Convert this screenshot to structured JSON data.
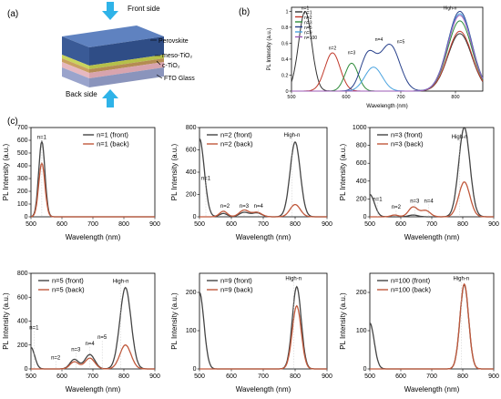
{
  "labels": {
    "a": "(a)",
    "b": "(b)",
    "c": "(c)"
  },
  "schematic": {
    "front_side": "Front side",
    "back_side": "Back side",
    "layers": [
      "Perovskite",
      "meso-TiO₂",
      "c-TiO₂",
      "FTO Glass"
    ],
    "layer_colors": [
      "#3a5a96",
      "#c9d45c",
      "#c9a060",
      "#9aa4cc"
    ],
    "arrow_color": "#2fb3e8"
  },
  "chart_data": [
    {
      "id": "b",
      "type": "line",
      "xlabel": "Wavelength (nm)",
      "ylabel": "PL Intensity (a.u.)",
      "xlim": [
        500,
        850
      ],
      "ylim": [
        0,
        1.05
      ],
      "xticks": [
        500,
        600,
        700,
        800
      ],
      "yticks": [
        0,
        0.2,
        0.4,
        0.6,
        0.8,
        1.0
      ],
      "legend": "top-left",
      "series": [
        {
          "name": "n=1",
          "color": "#333333",
          "peaks": [
            [
              525,
              1.0,
              12
            ],
            [
              808,
              0.72,
              22
            ]
          ]
        },
        {
          "name": "n=2",
          "color": "#c0392b",
          "peaks": [
            [
              575,
              0.48,
              14
            ],
            [
              808,
              0.75,
              22
            ]
          ]
        },
        {
          "name": "n=3",
          "color": "#2e8b3a",
          "peaks": [
            [
              610,
              0.35,
              12
            ],
            [
              808,
              0.88,
              22
            ]
          ]
        },
        {
          "name": "n=5",
          "color": "#27408b",
          "peaks": [
            [
              640,
              0.45,
              14
            ],
            [
              680,
              0.58,
              18
            ],
            [
              808,
              1.0,
              22
            ]
          ]
        },
        {
          "name": "n=9",
          "color": "#4aa3df",
          "peaks": [
            [
              650,
              0.3,
              16
            ],
            [
              808,
              0.97,
              22
            ]
          ]
        },
        {
          "name": "n=100",
          "color": "#9b59b6",
          "peaks": [
            [
              808,
              0.95,
              22
            ]
          ]
        }
      ],
      "annotations": [
        {
          "text": "n=1",
          "x": 525,
          "y": 1.02
        },
        {
          "text": "n=2",
          "x": 575,
          "y": 0.52
        },
        {
          "text": "n=3",
          "x": 610,
          "y": 0.46
        },
        {
          "text": "n=4",
          "x": 660,
          "y": 0.63
        },
        {
          "text": "n=5",
          "x": 700,
          "y": 0.6
        },
        {
          "text": "High-n",
          "x": 790,
          "y": 1.02
        }
      ]
    },
    {
      "id": "c1",
      "type": "line",
      "xlabel": "Wavelength (nm)",
      "ylabel": "PL Intensity (a.u.)",
      "xlim": [
        500,
        900
      ],
      "ylim": [
        0,
        700
      ],
      "xticks": [
        500,
        600,
        700,
        800,
        900
      ],
      "yticks": [
        0,
        100,
        200,
        300,
        400,
        500,
        600,
        700
      ],
      "legend": "top-right",
      "series": [
        {
          "name": "n=1 (front)",
          "color": "#444444",
          "peaks": [
            [
              535,
              590,
              10
            ]
          ]
        },
        {
          "name": "n=1 (back)",
          "color": "#c0583b",
          "peaks": [
            [
              535,
              420,
              10
            ]
          ]
        }
      ],
      "annotations": [
        {
          "text": "n=1",
          "x": 535,
          "y": 610
        }
      ]
    },
    {
      "id": "c2",
      "type": "line",
      "xlabel": "Wavelength (nm)",
      "ylabel": "PL Intensity (a.u.)",
      "xlim": [
        500,
        900
      ],
      "ylim": [
        0,
        800
      ],
      "xticks": [
        500,
        600,
        700,
        800,
        900
      ],
      "yticks": [
        0,
        200,
        400,
        600,
        800
      ],
      "legend": "top-left",
      "series": [
        {
          "name": "n=2 (front)",
          "color": "#444444",
          "peaks": [
            [
              500,
              700,
              15
            ],
            [
              575,
              30,
              12
            ],
            [
              640,
              40,
              15
            ],
            [
              680,
              35,
              15
            ],
            [
              800,
              670,
              16
            ]
          ]
        },
        {
          "name": "n=2 (back)",
          "color": "#c0583b",
          "peaks": [
            [
              575,
              50,
              12
            ],
            [
              640,
              60,
              15
            ],
            [
              680,
              40,
              15
            ],
            [
              800,
              110,
              16
            ]
          ]
        }
      ],
      "annotations": [
        {
          "text": "n=1",
          "x": 520,
          "y": 330
        },
        {
          "text": "n=2",
          "x": 580,
          "y": 80
        },
        {
          "text": "n=3",
          "x": 640,
          "y": 80
        },
        {
          "text": "n=4",
          "x": 685,
          "y": 80
        },
        {
          "text": "High-n",
          "x": 790,
          "y": 720
        }
      ]
    },
    {
      "id": "c3",
      "type": "line",
      "xlabel": "Wavelength (nm)",
      "ylabel": "PL Intensity (a.u.)",
      "xlim": [
        500,
        900
      ],
      "ylim": [
        0,
        1000
      ],
      "xticks": [
        500,
        600,
        700,
        800,
        900
      ],
      "yticks": [
        0,
        200,
        400,
        600,
        800,
        1000
      ],
      "legend": "top-left",
      "series": [
        {
          "name": "n=3 (front)",
          "color": "#444444",
          "peaks": [
            [
              500,
              250,
              15
            ],
            [
              640,
              20,
              15
            ],
            [
              805,
              1000,
              18
            ]
          ]
        },
        {
          "name": "n=3 (back)",
          "color": "#c0583b",
          "peaks": [
            [
              580,
              20,
              12
            ],
            [
              640,
              110,
              15
            ],
            [
              680,
              70,
              15
            ],
            [
              805,
              390,
              18
            ]
          ]
        }
      ],
      "annotations": [
        {
          "text": "n=1",
          "x": 525,
          "y": 180
        },
        {
          "text": "n=2",
          "x": 585,
          "y": 90
        },
        {
          "text": "n=3",
          "x": 645,
          "y": 160
        },
        {
          "text": "n=4",
          "x": 690,
          "y": 160
        },
        {
          "text": "High-n",
          "x": 790,
          "y": 880
        }
      ]
    },
    {
      "id": "c4",
      "type": "line",
      "xlabel": "Wavelength (nm)",
      "ylabel": "PL Intensity (a.u.)",
      "xlim": [
        500,
        900
      ],
      "ylim": [
        0,
        800
      ],
      "xticks": [
        500,
        600,
        700,
        800,
        900
      ],
      "yticks": [
        0,
        200,
        400,
        600,
        800
      ],
      "legend": "top-left",
      "series": [
        {
          "name": "n=5 (front)",
          "color": "#444444",
          "peaks": [
            [
              500,
              180,
              12
            ],
            [
              640,
              80,
              14
            ],
            [
              690,
              120,
              16
            ],
            [
              805,
              680,
              18
            ]
          ]
        },
        {
          "name": "n=5 (back)",
          "color": "#c0583b",
          "peaks": [
            [
              640,
              60,
              14
            ],
            [
              690,
              90,
              16
            ],
            [
              805,
              200,
              18
            ]
          ]
        }
      ],
      "annotations": [
        {
          "text": "n=1",
          "x": 510,
          "y": 330
        },
        {
          "text": "n=2",
          "x": 580,
          "y": 80
        },
        {
          "text": "n=3",
          "x": 645,
          "y": 150
        },
        {
          "text": "n=4",
          "x": 690,
          "y": 200
        },
        {
          "text": "n=5",
          "x": 730,
          "y": 250
        },
        {
          "text": "High-n",
          "x": 790,
          "y": 720
        }
      ]
    },
    {
      "id": "c5",
      "type": "line",
      "xlabel": "Wavelength (nm)",
      "ylabel": "PL Intensity (a.u.)",
      "xlim": [
        500,
        900
      ],
      "ylim": [
        0,
        250
      ],
      "xticks": [
        500,
        600,
        700,
        800,
        900
      ],
      "yticks": [
        0,
        100,
        200
      ],
      "legend": "top-left",
      "series": [
        {
          "name": "n=9 (front)",
          "color": "#444444",
          "peaks": [
            [
              500,
              200,
              14
            ],
            [
              805,
              215,
              14
            ]
          ]
        },
        {
          "name": "n=9 (back)",
          "color": "#c0583b",
          "peaks": [
            [
              805,
              165,
              14
            ]
          ]
        }
      ],
      "annotations": [
        {
          "text": "High-n",
          "x": 795,
          "y": 232
        }
      ]
    },
    {
      "id": "c6",
      "type": "line",
      "xlabel": "Wavelength (nm)",
      "ylabel": "PL Intensity (a.u.)",
      "xlim": [
        500,
        900
      ],
      "ylim": [
        0,
        250
      ],
      "xticks": [
        500,
        600,
        700,
        800,
        900
      ],
      "yticks": [
        0,
        100,
        200
      ],
      "legend": "top-left",
      "series": [
        {
          "name": "n=100 (front)",
          "color": "#444444",
          "peaks": [
            [
              500,
              120,
              14
            ],
            [
              805,
              220,
              14
            ]
          ]
        },
        {
          "name": "n=100 (back)",
          "color": "#c0583b",
          "peaks": [
            [
              805,
              222,
              14
            ]
          ]
        }
      ],
      "annotations": [
        {
          "text": "High-n",
          "x": 795,
          "y": 232
        }
      ]
    }
  ]
}
